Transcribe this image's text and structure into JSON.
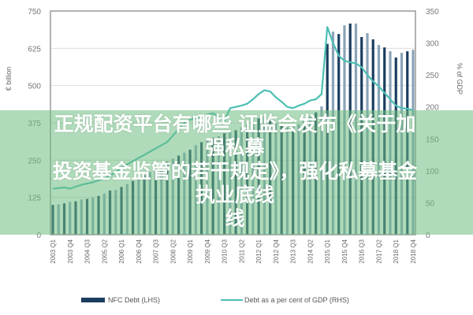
{
  "chart_data": {
    "type": "bar",
    "title": "",
    "ylabel_left": "€ billion",
    "ylabel_right": "% of GDP",
    "ylim_left": [
      0,
      750
    ],
    "ylim_right": [
      0,
      350
    ],
    "yticks_left": [
      0,
      125,
      250,
      375,
      500,
      625,
      750
    ],
    "yticks_right": [
      0,
      50,
      100,
      150,
      200,
      250,
      300,
      350
    ],
    "grid": true,
    "legend_placement": "bottom",
    "x_start": "2003 Q1",
    "x_tick_labels": [
      "2003 Q1",
      "2003 Q4",
      "2004 Q3",
      "2005 Q2",
      "2006 Q1",
      "2006 Q4",
      "2007 Q3",
      "2008 Q2",
      "2009 Q1",
      "2009 Q4",
      "2010 Q3",
      "2011 Q2",
      "2012 Q1",
      "2012 Q4",
      "2013 Q3",
      "2014 Q2",
      "2015 Q1",
      "2015 Q4",
      "2016 Q3",
      "2017 Q2",
      "2018 Q1",
      "2018 Q4"
    ],
    "series": [
      {
        "name": "NFC Debt (LHS)",
        "type": "bar",
        "axis": "left",
        "color": "#1b3d60",
        "alt_color": "#8aa3b8",
        "values": [
          100,
          102,
          105,
          110,
          112,
          118,
          120,
          125,
          130,
          138,
          148,
          150,
          160,
          170,
          180,
          190,
          200,
          210,
          222,
          235,
          245,
          255,
          265,
          275,
          285,
          300,
          310,
          320,
          325,
          330,
          340,
          345,
          350,
          360,
          370,
          380,
          390,
          395,
          385,
          375,
          365,
          360,
          360,
          370,
          380,
          395,
          410,
          430,
          640,
          681,
          673,
          702,
          708,
          708,
          663,
          676,
          655,
          636,
          628,
          615,
          594,
          610,
          615,
          620
        ]
      },
      {
        "name": "Debt as a per cent of GDP (RHS)",
        "type": "line",
        "axis": "right",
        "color": "#4cbfb4",
        "values": [
          72,
          73,
          74,
          72,
          75,
          78,
          80,
          82,
          85,
          88,
          92,
          98,
          105,
          110,
          115,
          120,
          125,
          130,
          135,
          140,
          145,
          155,
          165,
          175,
          180,
          182,
          185,
          188,
          190,
          185,
          178,
          198,
          200,
          202,
          205,
          212,
          220,
          226,
          224,
          215,
          208,
          200,
          198,
          202,
          205,
          210,
          212,
          220,
          325,
          300,
          280,
          272,
          270,
          268,
          262,
          250,
          240,
          232,
          222,
          212,
          202,
          198,
          197,
          195
        ]
      }
    ]
  },
  "banner": {
    "title_lines": [
      "正规配资平台有哪些 证监会发布《关于加强私募",
      "投资基金监管的若干规定》，强化私募基金执业底线",
      "线"
    ]
  }
}
